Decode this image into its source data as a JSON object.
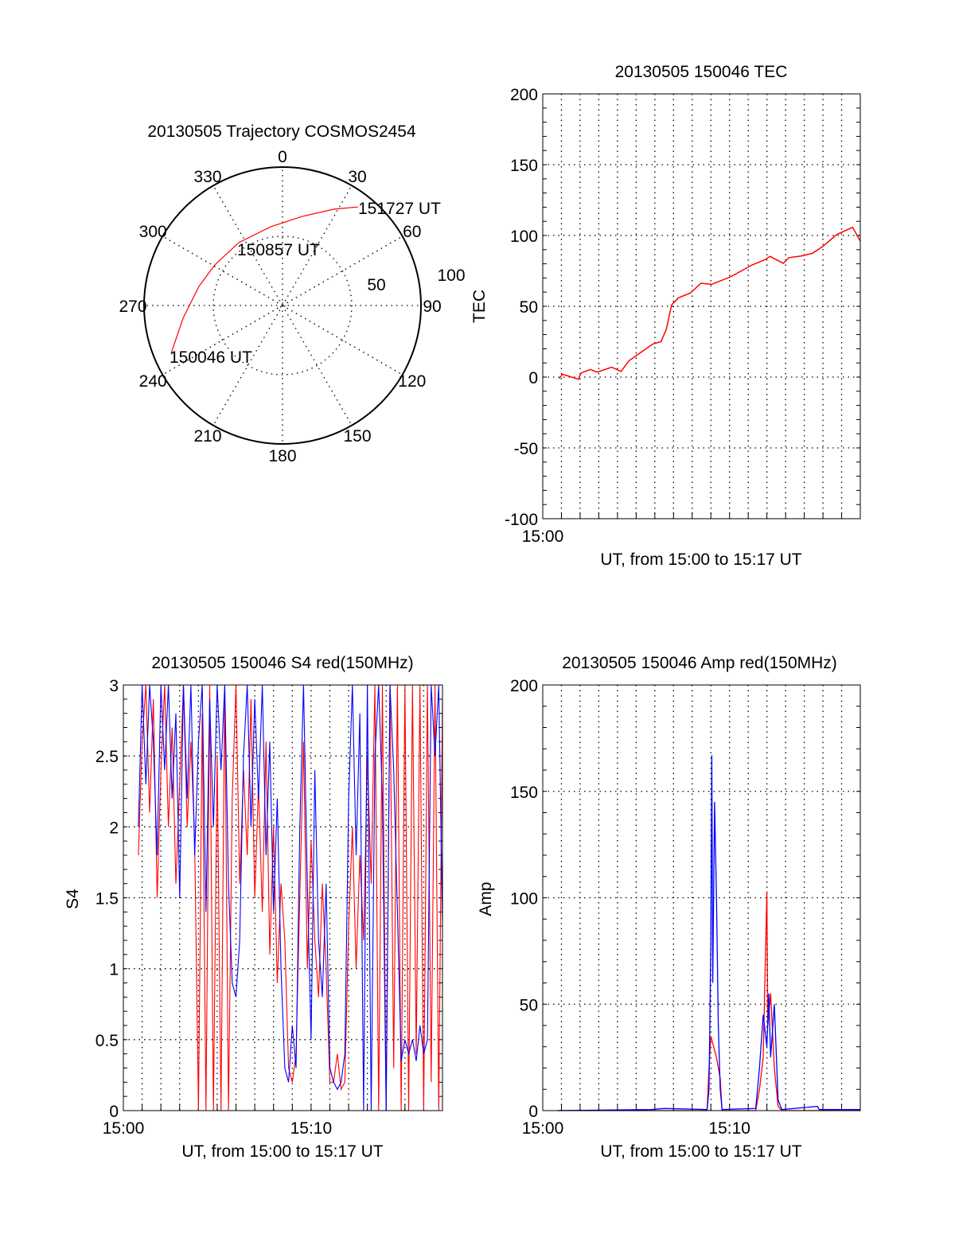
{
  "chart_data": [
    {
      "type": "polar",
      "title": "20130505 Trajectory COSMOS2454",
      "azimuth_labels": [
        "0",
        "30",
        "60",
        "90",
        "120",
        "150",
        "180",
        "210",
        "240",
        "270",
        "300",
        "330"
      ],
      "radial_labels": [
        "50",
        "100"
      ],
      "radial_range": [
        0,
        100
      ],
      "annotations": [
        "150046 UT",
        "150857 UT",
        "151727 UT"
      ],
      "trajectory": {
        "color": "#ff0000",
        "azimuth_deg": [
          246.8,
          262.7,
          282.9,
          301,
          325.2,
          351.4,
          12.6,
          28.2,
          37.5
        ],
        "radius": [
          87.5,
          72.4,
          61.9,
          57,
          55.3,
          57.5,
          66,
          79,
          89.8
        ]
      }
    },
    {
      "type": "line",
      "title": "20130505 150046 TEC",
      "xlabel": "UT, from 15:00 to 15:17 UT",
      "ylabel": "TEC",
      "xlim": [
        0,
        17
      ],
      "ylim": [
        -100,
        200
      ],
      "x_tick_labels": [
        "15:00"
      ],
      "y_ticks": [
        -100,
        -50,
        0,
        50,
        100,
        150,
        200
      ],
      "grid": true,
      "series": [
        {
          "name": "TEC",
          "color": "#ff0000",
          "x": [
            0.89,
            1.06,
            1.91,
            2.06,
            2.56,
            2.91,
            3.69,
            4.19,
            4.62,
            5.18,
            5.9,
            6.33,
            6.62,
            6.9,
            7.27,
            7.9,
            8.47,
            9.04,
            10.03,
            10.74,
            11.17,
            11.88,
            12.17,
            12.88,
            13.17,
            13.88,
            14.45,
            15.02,
            15.73,
            16.59,
            17.0
          ],
          "y": [
            -1,
            2,
            -1.5,
            3,
            5.4,
            3.5,
            7,
            4,
            11.6,
            16.8,
            23.4,
            25,
            34,
            51,
            56,
            59.4,
            66.3,
            65.5,
            70.7,
            75.8,
            79,
            82.8,
            85.2,
            80.3,
            84.3,
            85.6,
            87.5,
            92.5,
            100.6,
            105.8,
            96
          ]
        }
      ]
    },
    {
      "type": "line",
      "title": "20130505 150046 S4 red(150MHz)",
      "xlabel": "UT, from 15:00 to 15:17 UT",
      "ylabel": "S4",
      "xlim": [
        0,
        17
      ],
      "ylim": [
        0,
        3
      ],
      "x_tick_labels": [
        "15:00",
        "15:10"
      ],
      "x_tick_values": [
        0,
        10
      ],
      "y_ticks": [
        "0",
        "0.5",
        "1",
        "1.5",
        "2",
        "2.5",
        "3"
      ],
      "grid": true,
      "x_start_min": 0.8,
      "x_step_min": 0.2,
      "series": [
        {
          "name": "red",
          "color": "#ff0000",
          "values": [
            1.8,
            2.6,
            3,
            2.1,
            2.9,
            1.5,
            2.4,
            3,
            2.0,
            2.7,
            1.6,
            2.3,
            3,
            2.0,
            2.6,
            1.9,
            0,
            2.8,
            0,
            3,
            0,
            2.5,
            0,
            3,
            0,
            2.2,
            3,
            1.6,
            2.4,
            1.8,
            2.9,
            1.5,
            2.3,
            1.4,
            2.6,
            1.1,
            2.0,
            0.9,
            1.6,
            1.2,
            0.3,
            0.2,
            0.4,
            1.5,
            2.6,
            1.0,
            1.9,
            1.2,
            0.8,
            1.6,
            1.0,
            0.2,
            0.2,
            0.4,
            0.15,
            0.2,
            1.3,
            2.0,
            1.0,
            1.8,
            1.2,
            2.5,
            1.6,
            3,
            0,
            3,
            0,
            3,
            0.3,
            3,
            0,
            3,
            0,
            3,
            0.4,
            3,
            0,
            3,
            0.2,
            3,
            0,
            2.9
          ]
        },
        {
          "name": "blue",
          "color": "#0000ff",
          "values": [
            2.0,
            3,
            2.3,
            3,
            2.6,
            1.8,
            3,
            2.4,
            3,
            2.2,
            2.8,
            1.5,
            3,
            2.2,
            3,
            1.8,
            2.6,
            3,
            1.4,
            2.9,
            2.0,
            3,
            2.4,
            3,
            1.6,
            0.9,
            0.8,
            1.2,
            2.5,
            3,
            2.0,
            2.9,
            2.2,
            3,
            1.8,
            2.6,
            1.4,
            2.2,
            1.0,
            0.3,
            0.2,
            0.6,
            0.3,
            2.0,
            3,
            1.6,
            0.5,
            2.4,
            1.2,
            0.8,
            1.6,
            0.3,
            0.2,
            0.15,
            0.2,
            0.4,
            2.2,
            3,
            1.8,
            2.8,
            0,
            3,
            0,
            2.5,
            3,
            2.2,
            0,
            3,
            2.4,
            1.4,
            0.35,
            0.5,
            0.4,
            0.5,
            0.35,
            0.6,
            0.4,
            0.5,
            3,
            2.5,
            3,
            1.3
          ]
        }
      ]
    },
    {
      "type": "line",
      "title": "20130505 150046 Amp red(150MHz)",
      "xlabel": "UT, from 15:00 to 15:17 UT",
      "ylabel": "Amp",
      "xlim": [
        0,
        17
      ],
      "ylim": [
        0,
        200
      ],
      "x_tick_labels": [
        "15:00",
        "15:10"
      ],
      "x_tick_values": [
        0,
        10
      ],
      "y_ticks": [
        0,
        50,
        100,
        150,
        200
      ],
      "grid": true,
      "series": [
        {
          "name": "red",
          "color": "#ff0000",
          "x": [
            0.8,
            8.8,
            8.9,
            9.0,
            9.3,
            9.5,
            9.6,
            11.4,
            11.6,
            11.8,
            12.0,
            12.05,
            12.2,
            12.4,
            12.6,
            12.8,
            17
          ],
          "y": [
            0,
            0,
            20,
            35,
            25,
            15,
            0,
            0,
            10,
            25,
            103,
            40,
            55,
            20,
            2,
            0,
            0
          ]
        },
        {
          "name": "blue",
          "color": "#0000ff",
          "x": [
            0.8,
            5.8,
            6.5,
            8.8,
            8.9,
            9.0,
            9.05,
            9.1,
            9.2,
            9.3,
            9.4,
            9.5,
            9.6,
            11.4,
            11.6,
            11.8,
            12.0,
            12.1,
            12.2,
            12.4,
            12.6,
            12.8,
            14.7,
            14.8,
            17
          ],
          "y": [
            0,
            0.5,
            1,
            0.5,
            10,
            80,
            167,
            60,
            145,
            100,
            40,
            10,
            0.5,
            1,
            20,
            45,
            30,
            55,
            25,
            50,
            5,
            0.5,
            2,
            0.5,
            0.5
          ]
        }
      ]
    }
  ]
}
